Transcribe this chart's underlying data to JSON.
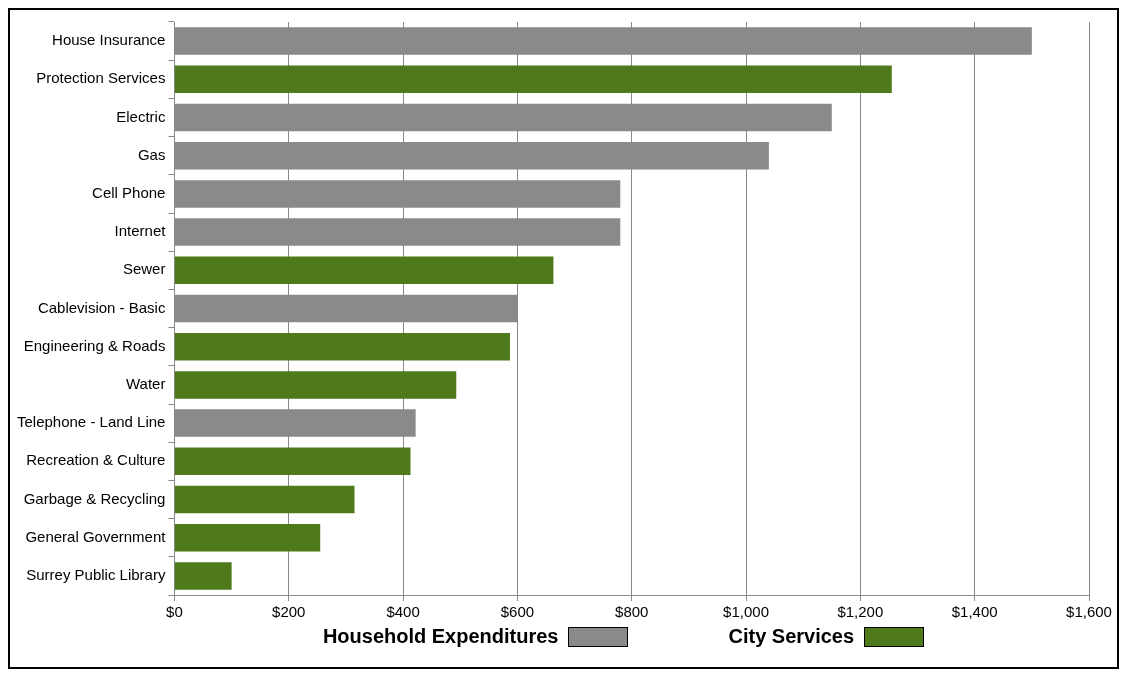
{
  "chart_data": {
    "type": "bar",
    "orientation": "horizontal",
    "categories": [
      "House Insurance",
      "Protection Services",
      "Electric",
      "Gas",
      "Cell Phone",
      "Internet",
      "Sewer",
      "Cablevision - Basic",
      "Engineering & Roads",
      "Water",
      "Telephone - Land Line",
      "Recreation & Culture",
      "Garbage & Recycling",
      "General Government",
      "Surrey Public Library"
    ],
    "series": [
      {
        "name": "Household Expenditures",
        "color": "#8a8a8a",
        "values": [
          1500,
          null,
          1150,
          1040,
          780,
          780,
          null,
          600,
          null,
          null,
          422,
          null,
          null,
          null,
          null
        ]
      },
      {
        "name": "City Services",
        "color": "#4e7a1c",
        "values": [
          null,
          1255,
          null,
          null,
          null,
          null,
          663,
          null,
          587,
          493,
          null,
          413,
          315,
          255,
          100
        ]
      }
    ],
    "xlim": [
      0,
      1600
    ],
    "xticks": [
      {
        "value": 0,
        "label": "$0"
      },
      {
        "value": 200,
        "label": "$200"
      },
      {
        "value": 400,
        "label": "$400"
      },
      {
        "value": 600,
        "label": "$600"
      },
      {
        "value": 800,
        "label": "$800"
      },
      {
        "value": 1000,
        "label": "$1,000"
      },
      {
        "value": 1200,
        "label": "$1,200"
      },
      {
        "value": 1400,
        "label": "$1,400"
      },
      {
        "value": 1600,
        "label": "$1,600"
      }
    ],
    "grid": "x",
    "legend": "bottom"
  }
}
